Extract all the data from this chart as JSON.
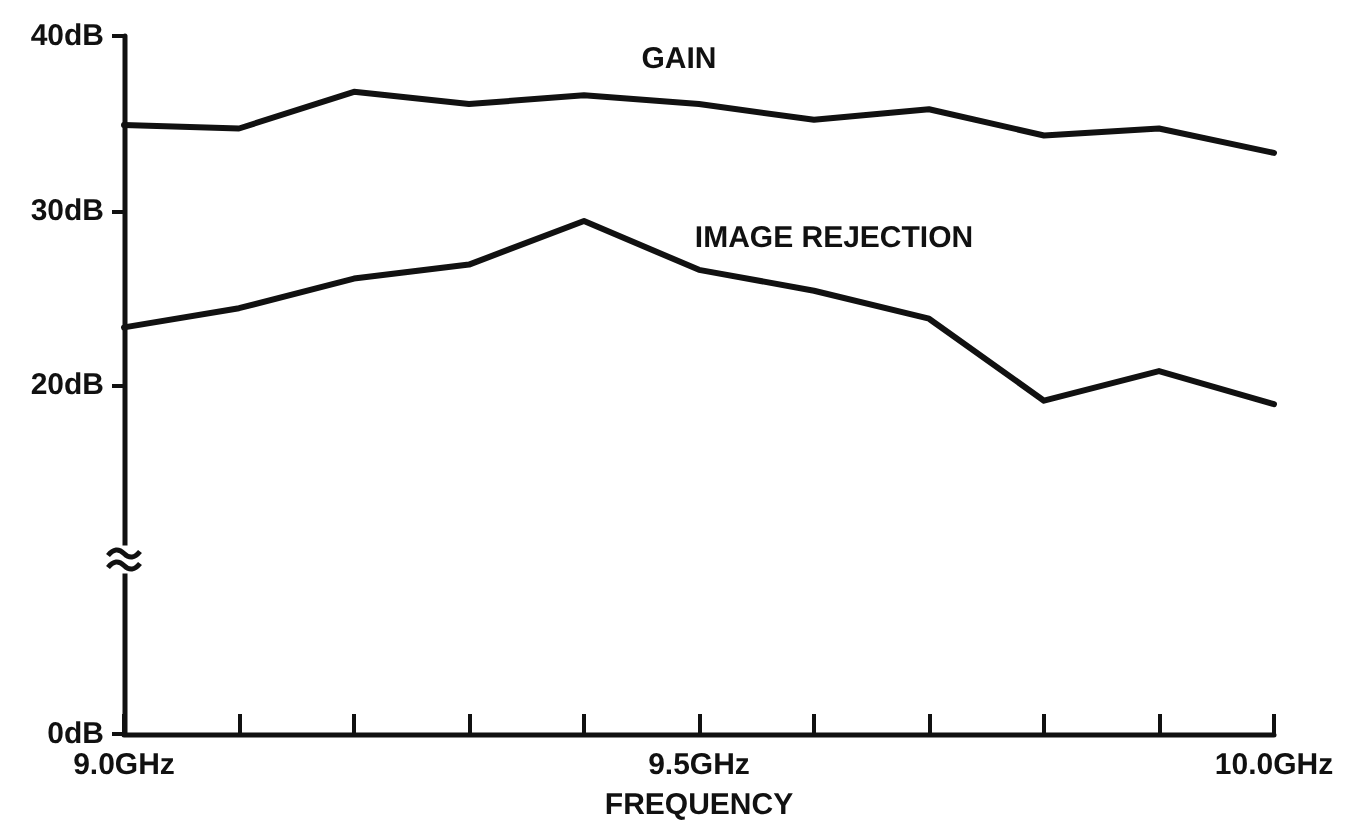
{
  "chart_data": {
    "type": "line",
    "xlabel": "FREQUENCY",
    "x": [
      9.0,
      9.1,
      9.2,
      9.3,
      9.4,
      9.5,
      9.6,
      9.7,
      9.8,
      9.9,
      10.0
    ],
    "series": [
      {
        "name": "GAIN",
        "color": "#111111",
        "values": [
          34.9,
          34.7,
          36.8,
          36.1,
          36.6,
          36.1,
          35.2,
          35.8,
          34.3,
          34.7,
          33.3
        ]
      },
      {
        "name": "IMAGE REJECTION",
        "color": "#111111",
        "values": [
          23.3,
          24.4,
          26.1,
          26.9,
          29.4,
          26.6,
          25.4,
          23.8,
          19.1,
          20.8,
          18.9
        ]
      }
    ],
    "xlim": [
      9.0,
      10.0
    ],
    "xticks": [
      {
        "value": 9.0,
        "label": "9.0GHz"
      },
      {
        "value": 9.1,
        "label": null
      },
      {
        "value": 9.2,
        "label": null
      },
      {
        "value": 9.3,
        "label": null
      },
      {
        "value": 9.4,
        "label": null
      },
      {
        "value": 9.5,
        "label": "9.5GHz"
      },
      {
        "value": 9.6,
        "label": null
      },
      {
        "value": 9.7,
        "label": null
      },
      {
        "value": 9.8,
        "label": null
      },
      {
        "value": 9.9,
        "label": null
      },
      {
        "value": 10.0,
        "label": "10.0GHz"
      }
    ],
    "ylim": [
      0,
      40
    ],
    "yticks": [
      {
        "value": 0,
        "label": "0dB"
      },
      {
        "value": 20,
        "label": "20dB"
      },
      {
        "value": 30,
        "label": "30dB"
      },
      {
        "value": 40,
        "label": "40dB"
      }
    ],
    "grid": false,
    "legend": false,
    "marker": "none",
    "line_style": "solid"
  }
}
